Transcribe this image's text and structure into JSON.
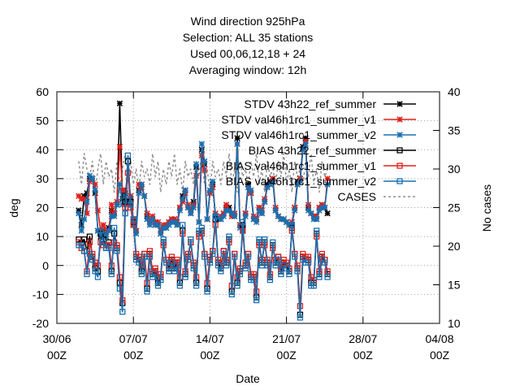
{
  "chart_data": {
    "type": "line",
    "title_lines": [
      "Wind direction 925hPa",
      "Selection: ALL     35 stations",
      "Used  00,06,12,18 + 24",
      "Averaging window: 12h"
    ],
    "xlabel": "Date",
    "ylabel": "deg",
    "y2label": "No cases",
    "xlim": [
      0,
      35
    ],
    "ylim": [
      -20,
      60
    ],
    "y2lim": [
      10,
      40
    ],
    "x_ticks": [
      {
        "x": 0,
        "line1": "30/06",
        "line2": "00Z"
      },
      {
        "x": 7,
        "line1": "07/07",
        "line2": "00Z"
      },
      {
        "x": 14,
        "line1": "14/07",
        "line2": "00Z"
      },
      {
        "x": 21,
        "line1": "21/07",
        "line2": "00Z"
      },
      {
        "x": 28,
        "line1": "28/07",
        "line2": "00Z"
      },
      {
        "x": 35,
        "line1": "04/08",
        "line2": "00Z"
      }
    ],
    "y_ticks": [
      -20,
      -10,
      0,
      10,
      20,
      30,
      40,
      50,
      60
    ],
    "y2_ticks": [
      10,
      15,
      20,
      25,
      30,
      35,
      40
    ],
    "grid": true,
    "legend_position": "top-right",
    "x_start": 2,
    "x_step": 0.25,
    "series": [
      {
        "name": "STDV 43h22_ref_summer",
        "color": "#000000",
        "marker": "star",
        "axis": "y",
        "values": [
          19,
          14,
          24,
          25,
          30,
          30,
          25,
          12,
          10,
          12,
          10,
          13,
          19,
          18,
          21,
          56,
          23,
          25,
          22,
          23,
          15,
          12,
          26,
          28,
          24,
          17,
          15,
          16,
          14,
          14,
          11,
          13,
          13,
          15,
          16,
          16,
          14,
          20,
          24,
          26,
          20,
          18,
          22,
          34,
          15,
          40,
          35,
          16,
          25,
          28,
          17,
          16,
          16,
          18,
          20,
          20,
          18,
          17,
          44,
          14,
          12,
          18,
          28,
          25,
          16,
          16,
          20,
          18,
          22,
          28,
          29,
          30,
          19,
          17,
          16,
          16,
          15,
          14,
          14,
          20,
          29,
          30,
          41,
          44,
          20,
          18,
          17,
          16,
          20,
          21,
          20,
          18
        ]
      },
      {
        "name": "STDV val46h1rc1_summer_v1",
        "color": "#e0201c",
        "marker": "star",
        "axis": "y",
        "values": [
          24,
          23,
          23,
          18,
          29,
          30,
          28,
          19,
          12,
          14,
          12,
          12,
          21,
          18,
          22,
          41,
          26,
          26,
          21,
          24,
          16,
          12,
          28,
          27,
          24,
          18,
          15,
          17,
          15,
          15,
          12,
          14,
          14,
          15,
          16,
          16,
          15,
          20,
          22,
          25,
          21,
          19,
          21,
          31,
          15,
          38,
          33,
          16,
          25,
          27,
          18,
          16,
          17,
          18,
          21,
          19,
          17,
          18,
          42,
          14,
          13,
          18,
          27,
          25,
          17,
          16,
          20,
          19,
          23,
          27,
          28,
          30,
          20,
          17,
          16,
          16,
          15,
          14,
          15,
          20,
          28,
          30,
          40,
          43,
          21,
          18,
          17,
          17,
          20,
          21,
          20,
          30
        ]
      },
      {
        "name": "STDV val46h1rc1_summer_v2",
        "color": "#1a70b0",
        "marker": "star",
        "axis": "y",
        "values": [
          18,
          12,
          16,
          22,
          31,
          30,
          26,
          12,
          11,
          11,
          10,
          12,
          17,
          17,
          21,
          28,
          21,
          24,
          22,
          23,
          14,
          11,
          25,
          28,
          24,
          16,
          14,
          16,
          14,
          14,
          11,
          13,
          13,
          14,
          15,
          15,
          14,
          19,
          23,
          26,
          20,
          18,
          20,
          35,
          15,
          42,
          36,
          16,
          26,
          29,
          17,
          16,
          16,
          17,
          19,
          19,
          18,
          17,
          42,
          13,
          12,
          17,
          27,
          26,
          16,
          15,
          19,
          18,
          22,
          27,
          28,
          29,
          19,
          17,
          16,
          16,
          15,
          14,
          14,
          19,
          28,
          29,
          40,
          42,
          19,
          18,
          16,
          16,
          19,
          20,
          20,
          28
        ]
      },
      {
        "name": "BIAS 43h22_ref_summer",
        "color": "#000000",
        "marker": "square",
        "axis": "y",
        "values": [
          9,
          8,
          9,
          5,
          10,
          3,
          -1,
          -2,
          11,
          9,
          6,
          8,
          -2,
          11,
          6,
          -6,
          -13,
          22,
          36,
          22,
          15,
          3,
          2,
          -2,
          4,
          -8,
          4,
          -3,
          -2,
          -6,
          -4,
          8,
          2,
          -1,
          2,
          -1,
          1,
          -6,
          12,
          -3,
          3,
          8,
          0,
          -6,
          11,
          12,
          4,
          -8,
          2,
          5,
          16,
          1,
          -1,
          5,
          1,
          9,
          -9,
          4,
          -6,
          -2,
          14,
          0,
          4,
          -4,
          -4,
          -11,
          8,
          1,
          8,
          1,
          -4,
          7,
          1,
          3,
          -2,
          1,
          0,
          -2,
          13,
          4,
          -1,
          -17,
          3,
          2,
          2,
          -6,
          -6,
          11,
          -3,
          3,
          2,
          -3
        ]
      },
      {
        "name": "BIAS val46h1rc1_summer_v1",
        "color": "#e0201c",
        "marker": "square",
        "axis": "y",
        "values": [
          8,
          6,
          5,
          -2,
          8,
          4,
          1,
          0,
          8,
          7,
          7,
          7,
          0,
          8,
          7,
          -4,
          -12,
          20,
          32,
          20,
          14,
          4,
          3,
          0,
          4,
          -6,
          5,
          -2,
          -1,
          -4,
          -3,
          7,
          2,
          0,
          3,
          0,
          2,
          -4,
          11,
          -2,
          4,
          8,
          1,
          -4,
          10,
          11,
          4,
          -6,
          3,
          5,
          14,
          2,
          0,
          5,
          2,
          8,
          -7,
          4,
          -4,
          -1,
          12,
          1,
          4,
          -3,
          -3,
          -9,
          7,
          2,
          7,
          2,
          -3,
          6,
          2,
          3,
          -1,
          2,
          1,
          -1,
          12,
          4,
          0,
          -14,
          4,
          3,
          3,
          -4,
          -5,
          10,
          -2,
          4,
          2,
          -2
        ]
      },
      {
        "name": "BIAS val46h1rc1_summer_v2",
        "color": "#1a70b0",
        "marker": "square",
        "axis": "y",
        "values": [
          7,
          7,
          5,
          -3,
          4,
          2,
          -2,
          -4,
          12,
          8,
          6,
          6,
          -3,
          13,
          5,
          -8,
          -16,
          18,
          38,
          21,
          16,
          2,
          1,
          -3,
          3,
          -9,
          3,
          -4,
          -3,
          -7,
          -5,
          9,
          1,
          -2,
          1,
          -2,
          0,
          -7,
          14,
          -4,
          2,
          9,
          -1,
          -7,
          12,
          13,
          3,
          -9,
          1,
          4,
          17,
          0,
          -2,
          4,
          0,
          10,
          -10,
          3,
          -7,
          -3,
          15,
          -1,
          3,
          -5,
          -5,
          -12,
          9,
          0,
          9,
          0,
          -5,
          8,
          0,
          2,
          -3,
          0,
          -1,
          -3,
          14,
          3,
          -2,
          -18,
          2,
          1,
          1,
          -7,
          -7,
          12,
          -4,
          2,
          1,
          -4
        ]
      },
      {
        "name": "CASES",
        "color": "#909090",
        "marker": "none",
        "dashed": true,
        "axis": "y2",
        "values": [
          31,
          28,
          32,
          30,
          29,
          31,
          27,
          30,
          32,
          28,
          31,
          29,
          30,
          27,
          31,
          28,
          30,
          32,
          29,
          31,
          28,
          30,
          27,
          31,
          29,
          30,
          28,
          32,
          29,
          31,
          27,
          30,
          28,
          31,
          29,
          32,
          28,
          30,
          27,
          31,
          29,
          30,
          28,
          31,
          29,
          32,
          28,
          30,
          27,
          31,
          29,
          30,
          28,
          31,
          29,
          32,
          28,
          30,
          27,
          31,
          29,
          30,
          28,
          31,
          29,
          32,
          28,
          30,
          27,
          31,
          29,
          30,
          28,
          31,
          29,
          32,
          28,
          30,
          27,
          31,
          29,
          30,
          28,
          31,
          29,
          32,
          28,
          30,
          27,
          31,
          29,
          30
        ]
      }
    ],
    "legend": [
      {
        "label": "STDV 43h22_ref_summer",
        "color": "#000000",
        "marker": "star"
      },
      {
        "label": "STDV val46h1rc1_summer_v1",
        "color": "#e0201c",
        "marker": "star"
      },
      {
        "label": "STDV val46h1rc1_summer_v2",
        "color": "#1a70b0",
        "marker": "star"
      },
      {
        "label": "BIAS 43h22_ref_summer",
        "color": "#000000",
        "marker": "square"
      },
      {
        "label": "BIAS val46h1rc1_summer_v1",
        "color": "#e0201c",
        "marker": "square"
      },
      {
        "label": "BIAS val46h1rc1_summer_v2",
        "color": "#1a70b0",
        "marker": "square"
      },
      {
        "label": "CASES",
        "color": "#909090",
        "marker": "dash"
      }
    ]
  }
}
